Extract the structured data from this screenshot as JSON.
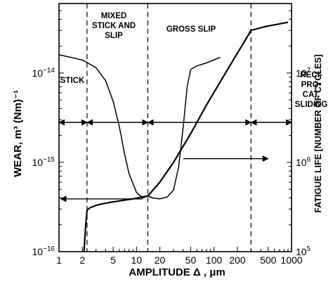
{
  "chart_data": {
    "type": "line",
    "xlabel": "AMPLITUDE Δ , μm",
    "ylabel_left": "WEAR, m³ (Nm)⁻¹",
    "ylabel_right": "FATIGUE LIFE [NUMBER OF CYCLES]",
    "x_scale": "log",
    "y_left_scale": "log",
    "y_right_scale": "log",
    "xlim": [
      1,
      1000
    ],
    "ylim_left": [
      1e-16,
      6e-14
    ],
    "ylim_right": [
      100000,
      60000000
    ],
    "x_ticks": [
      1,
      2,
      5,
      10,
      20,
      50,
      100,
      200,
      500,
      1000
    ],
    "x_tick_labels": [
      "1",
      "2",
      "5",
      "10",
      "20",
      "50",
      "100",
      "200",
      "500",
      "1000"
    ],
    "y_left_ticks": [
      1e-16,
      1e-15,
      1e-14
    ],
    "y_right_ticks": [
      100000,
      1000000,
      10000000
    ],
    "regions": [
      {
        "label_lines": [
          "STICK"
        ],
        "x_start": 1,
        "x_end": 2.3
      },
      {
        "label_lines": [
          "MIXED",
          "STICK AND",
          "SLIP"
        ],
        "x_start": 2.3,
        "x_end": 14
      },
      {
        "label_lines": [
          "GROSS SLIP"
        ],
        "x_start": 14,
        "x_end": 300
      },
      {
        "label_lines": [
          "RECI-",
          "PRO-",
          "CAT.",
          "SLIDING"
        ],
        "x_start": 300,
        "x_end": 1000
      }
    ],
    "region_boundaries": [
      2.3,
      14,
      300
    ],
    "series": [
      {
        "axis": "left",
        "x": [
          2.1,
          2.2,
          2.3,
          2.5,
          3,
          4,
          6,
          9,
          12,
          14,
          16,
          20,
          30,
          50,
          80,
          150,
          250,
          300,
          450,
          900
        ],
        "y": [
          1e-16,
          1.9e-16,
          2.9e-16,
          3.1e-16,
          3.3e-16,
          3.5e-16,
          3.7e-16,
          3.9e-16,
          4.1e-16,
          4.2e-16,
          4.8e-16,
          6e-16,
          1e-15,
          2.1e-15,
          4.4e-15,
          1.1e-14,
          2.3e-14,
          3e-14,
          3.3e-14,
          3.7e-14
        ]
      },
      {
        "axis": "right",
        "x": [
          1,
          2,
          3,
          4,
          5,
          6,
          7,
          8,
          10,
          12,
          14,
          16,
          20,
          25,
          30,
          35,
          40,
          45,
          50,
          60,
          80,
          120
        ],
        "y": [
          16000000,
          14000000,
          11500000,
          8200000,
          4800000,
          2500000,
          1250000,
          750000,
          460000,
          400000,
          420000,
          400000,
          390000,
          410000,
          490000,
          900000,
          2500000,
          7000000,
          11000000,
          12000000,
          13000000,
          15000000
        ]
      }
    ],
    "annotations": [
      {
        "type": "double-arrow",
        "x_from": 1,
        "x_to": 2.3,
        "y_right": 2800000
      },
      {
        "type": "double-arrow",
        "x_from": 2.3,
        "x_to": 14,
        "y_right": 2800000
      },
      {
        "type": "double-arrow",
        "x_from": 14,
        "x_to": 300,
        "y_right": 2800000
      },
      {
        "type": "double-arrow",
        "x_from": 300,
        "x_to": 1000,
        "y_right": 2800000
      },
      {
        "type": "arrow",
        "x_from": 12,
        "x_to": 1.05,
        "y_right": 390000
      },
      {
        "type": "arrow",
        "x_from": 40,
        "x_to": 500,
        "y_right": 1100000
      }
    ]
  }
}
